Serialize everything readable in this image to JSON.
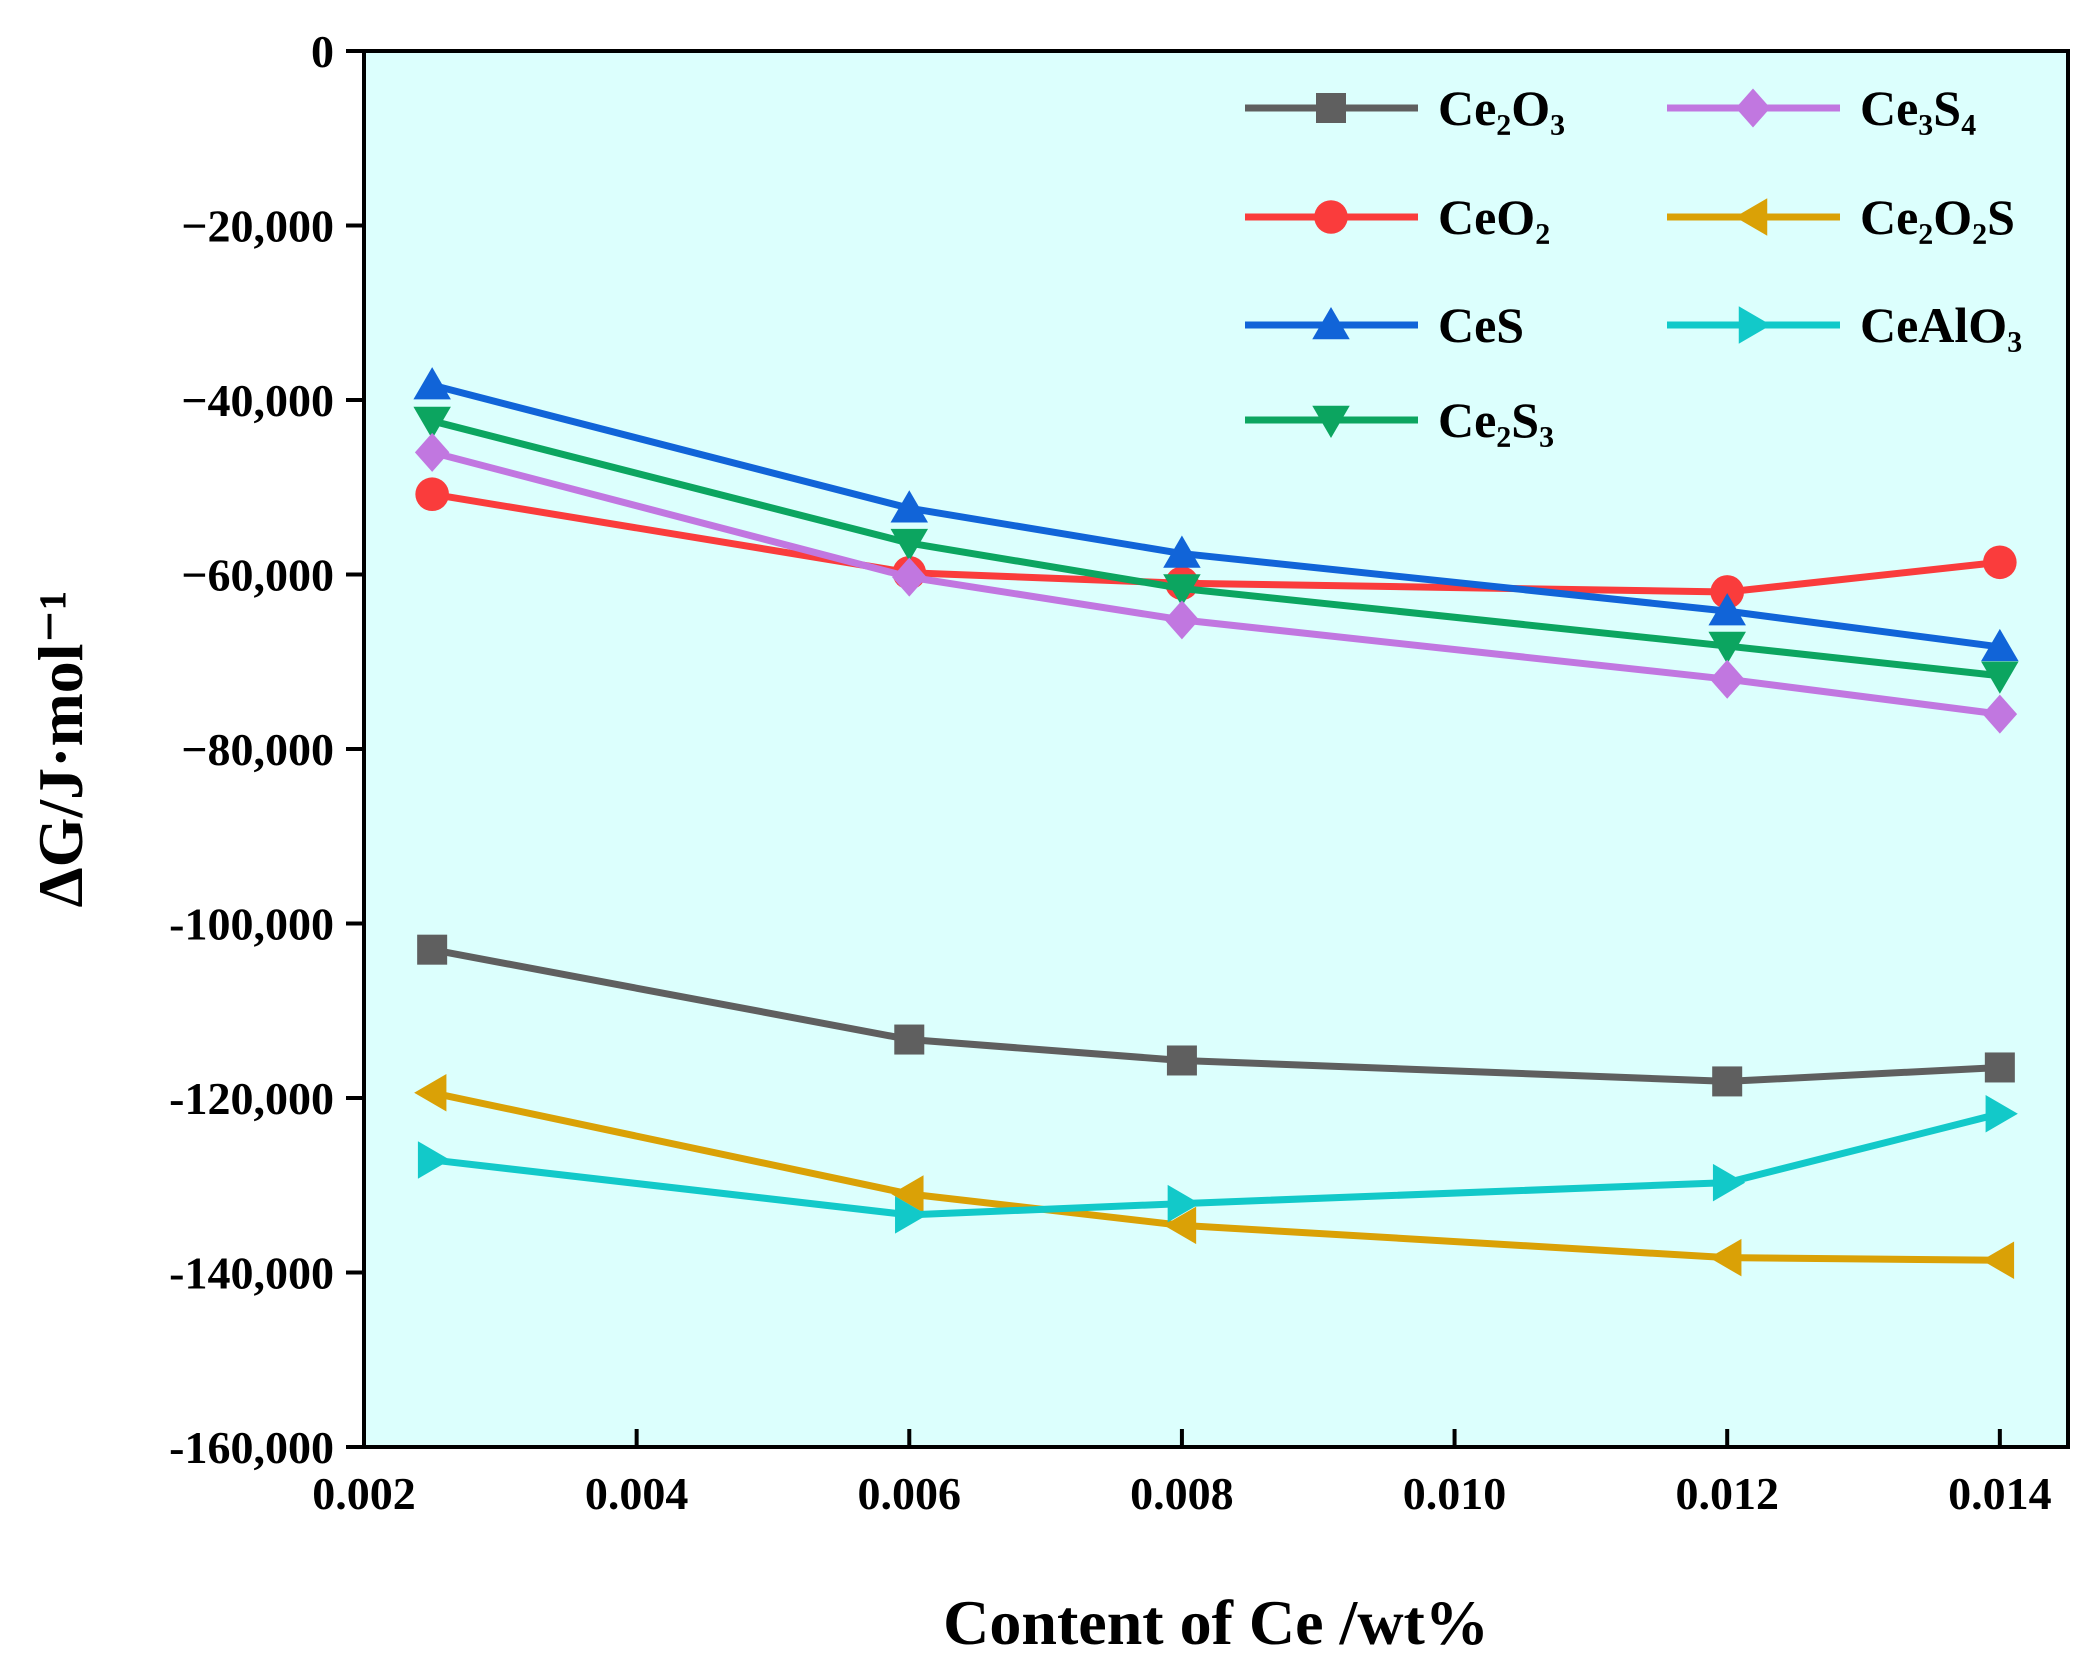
{
  "chart_data": {
    "type": "line",
    "title": "",
    "xlabel": "Content of Ce /wt%",
    "ylabel": "ΔG/J·mol⁻¹",
    "xlim": [
      0.002,
      0.0145
    ],
    "ylim": [
      -160000,
      0
    ],
    "background": "#dcfffd",
    "x_ticks": [
      0.002,
      0.004,
      0.006,
      0.008,
      0.01,
      0.012,
      0.014
    ],
    "x_tick_labels": [
      "0.002",
      "0.004",
      "0.006",
      "0.008",
      "0.010",
      "0.012",
      "0.014"
    ],
    "y_ticks": [
      0,
      -20000,
      -40000,
      -60000,
      -80000,
      -100000,
      -120000,
      -140000,
      -160000
    ],
    "y_tick_labels": [
      "0",
      "−20,000",
      "−40,000",
      "−60,000",
      "−80,000",
      "-100,000",
      "-120,000",
      "-140,000",
      "-160,000"
    ],
    "x": [
      0.0025,
      0.006,
      0.008,
      0.012,
      0.014
    ],
    "legend_position": "top-right",
    "series": [
      {
        "name": "Ce₂O₃",
        "marker": "square",
        "color": "#5f5f5f",
        "values": [
          -103000,
          -113300,
          -115700,
          -118100,
          -116500
        ]
      },
      {
        "name": "CeO₂",
        "marker": "circle",
        "color": "#fa3c3c",
        "values": [
          -50800,
          -59800,
          -61000,
          -62000,
          -58600
        ]
      },
      {
        "name": "CeS",
        "marker": "triangle-up",
        "color": "#1164d8",
        "values": [
          -38300,
          -52400,
          -57600,
          -64200,
          -68300
        ]
      },
      {
        "name": "Ce₂S₃",
        "marker": "triangle-down",
        "color": "#0ca560",
        "values": [
          -42400,
          -56400,
          -61600,
          -68200,
          -71600
        ]
      },
      {
        "name": "Ce₃S₄",
        "marker": "diamond",
        "color": "#c177e0",
        "values": [
          -46000,
          -60300,
          -65200,
          -72000,
          -76000
        ]
      },
      {
        "name": "Ce₂O₂S",
        "marker": "triangle-left",
        "color": "#daa106",
        "values": [
          -119400,
          -131000,
          -134600,
          -138300,
          -138600
        ]
      },
      {
        "name": "CeAlO₃",
        "marker": "triangle-right",
        "color": "#12c9c9",
        "values": [
          -127100,
          -133400,
          -132100,
          -129700,
          -121800
        ]
      }
    ]
  }
}
